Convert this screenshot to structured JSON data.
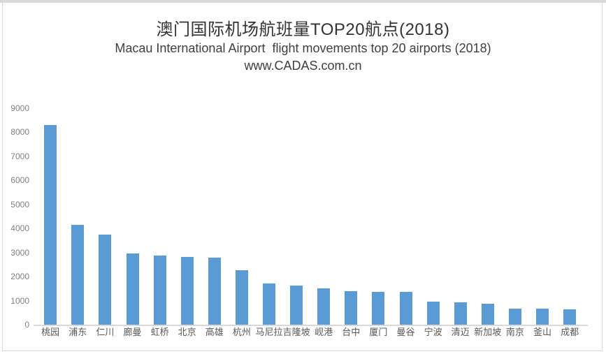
{
  "header": {
    "title": "澳门国际机场航班量TOP20航点(2018)",
    "subtitle": "Macau International Airport  flight movements top 20 airports (2018)",
    "watermark": "www.CADAS.com.cn"
  },
  "chart_data": {
    "type": "bar",
    "title": "澳门国际机场航班量TOP20航点(2018)",
    "subtitle": "Macau International Airport  flight movements top 20 airports (2018)",
    "watermark": "www.CADAS.com.cn",
    "categories": [
      "桃园",
      "浦东",
      "仁川",
      "廊曼",
      "虹桥",
      "北京",
      "高雄",
      "杭州",
      "马尼拉",
      "吉隆坡",
      "岘港",
      "台中",
      "厦门",
      "曼谷",
      "宁波",
      "清迈",
      "新加坡",
      "南京",
      "釜山",
      "成都"
    ],
    "values": [
      8300,
      4150,
      3750,
      2950,
      2860,
      2830,
      2780,
      2250,
      1710,
      1640,
      1520,
      1380,
      1360,
      1350,
      970,
      930,
      880,
      660,
      655,
      640
    ],
    "xlabel": "",
    "ylabel": "",
    "ylim": [
      0,
      9000
    ],
    "yticks": [
      0,
      1000,
      2000,
      3000,
      4000,
      5000,
      6000,
      7000,
      8000,
      9000
    ],
    "grid": false,
    "legend": false,
    "bar_color": "#5b9bd5",
    "axis_line_color": "#d9d9d9",
    "y_tick_color": "#808080",
    "x_label_color": "#595959"
  }
}
